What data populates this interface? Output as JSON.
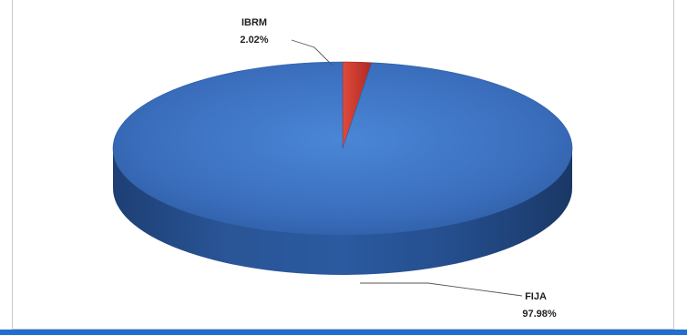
{
  "chart_data": {
    "type": "pie",
    "three_d": true,
    "slices": [
      {
        "label": "FIJA",
        "value": 97.98,
        "percent_label": "97.98%",
        "color": "#3f73c4"
      },
      {
        "label": "IBRM",
        "value": 2.02,
        "percent_label": "2.02%",
        "color": "#c0392b"
      }
    ],
    "title": "",
    "legend": "none"
  },
  "colors": {
    "frame_border": "#c9c9c9",
    "bottom_bar": "#1f6fcf",
    "leader_line": "#555555"
  }
}
